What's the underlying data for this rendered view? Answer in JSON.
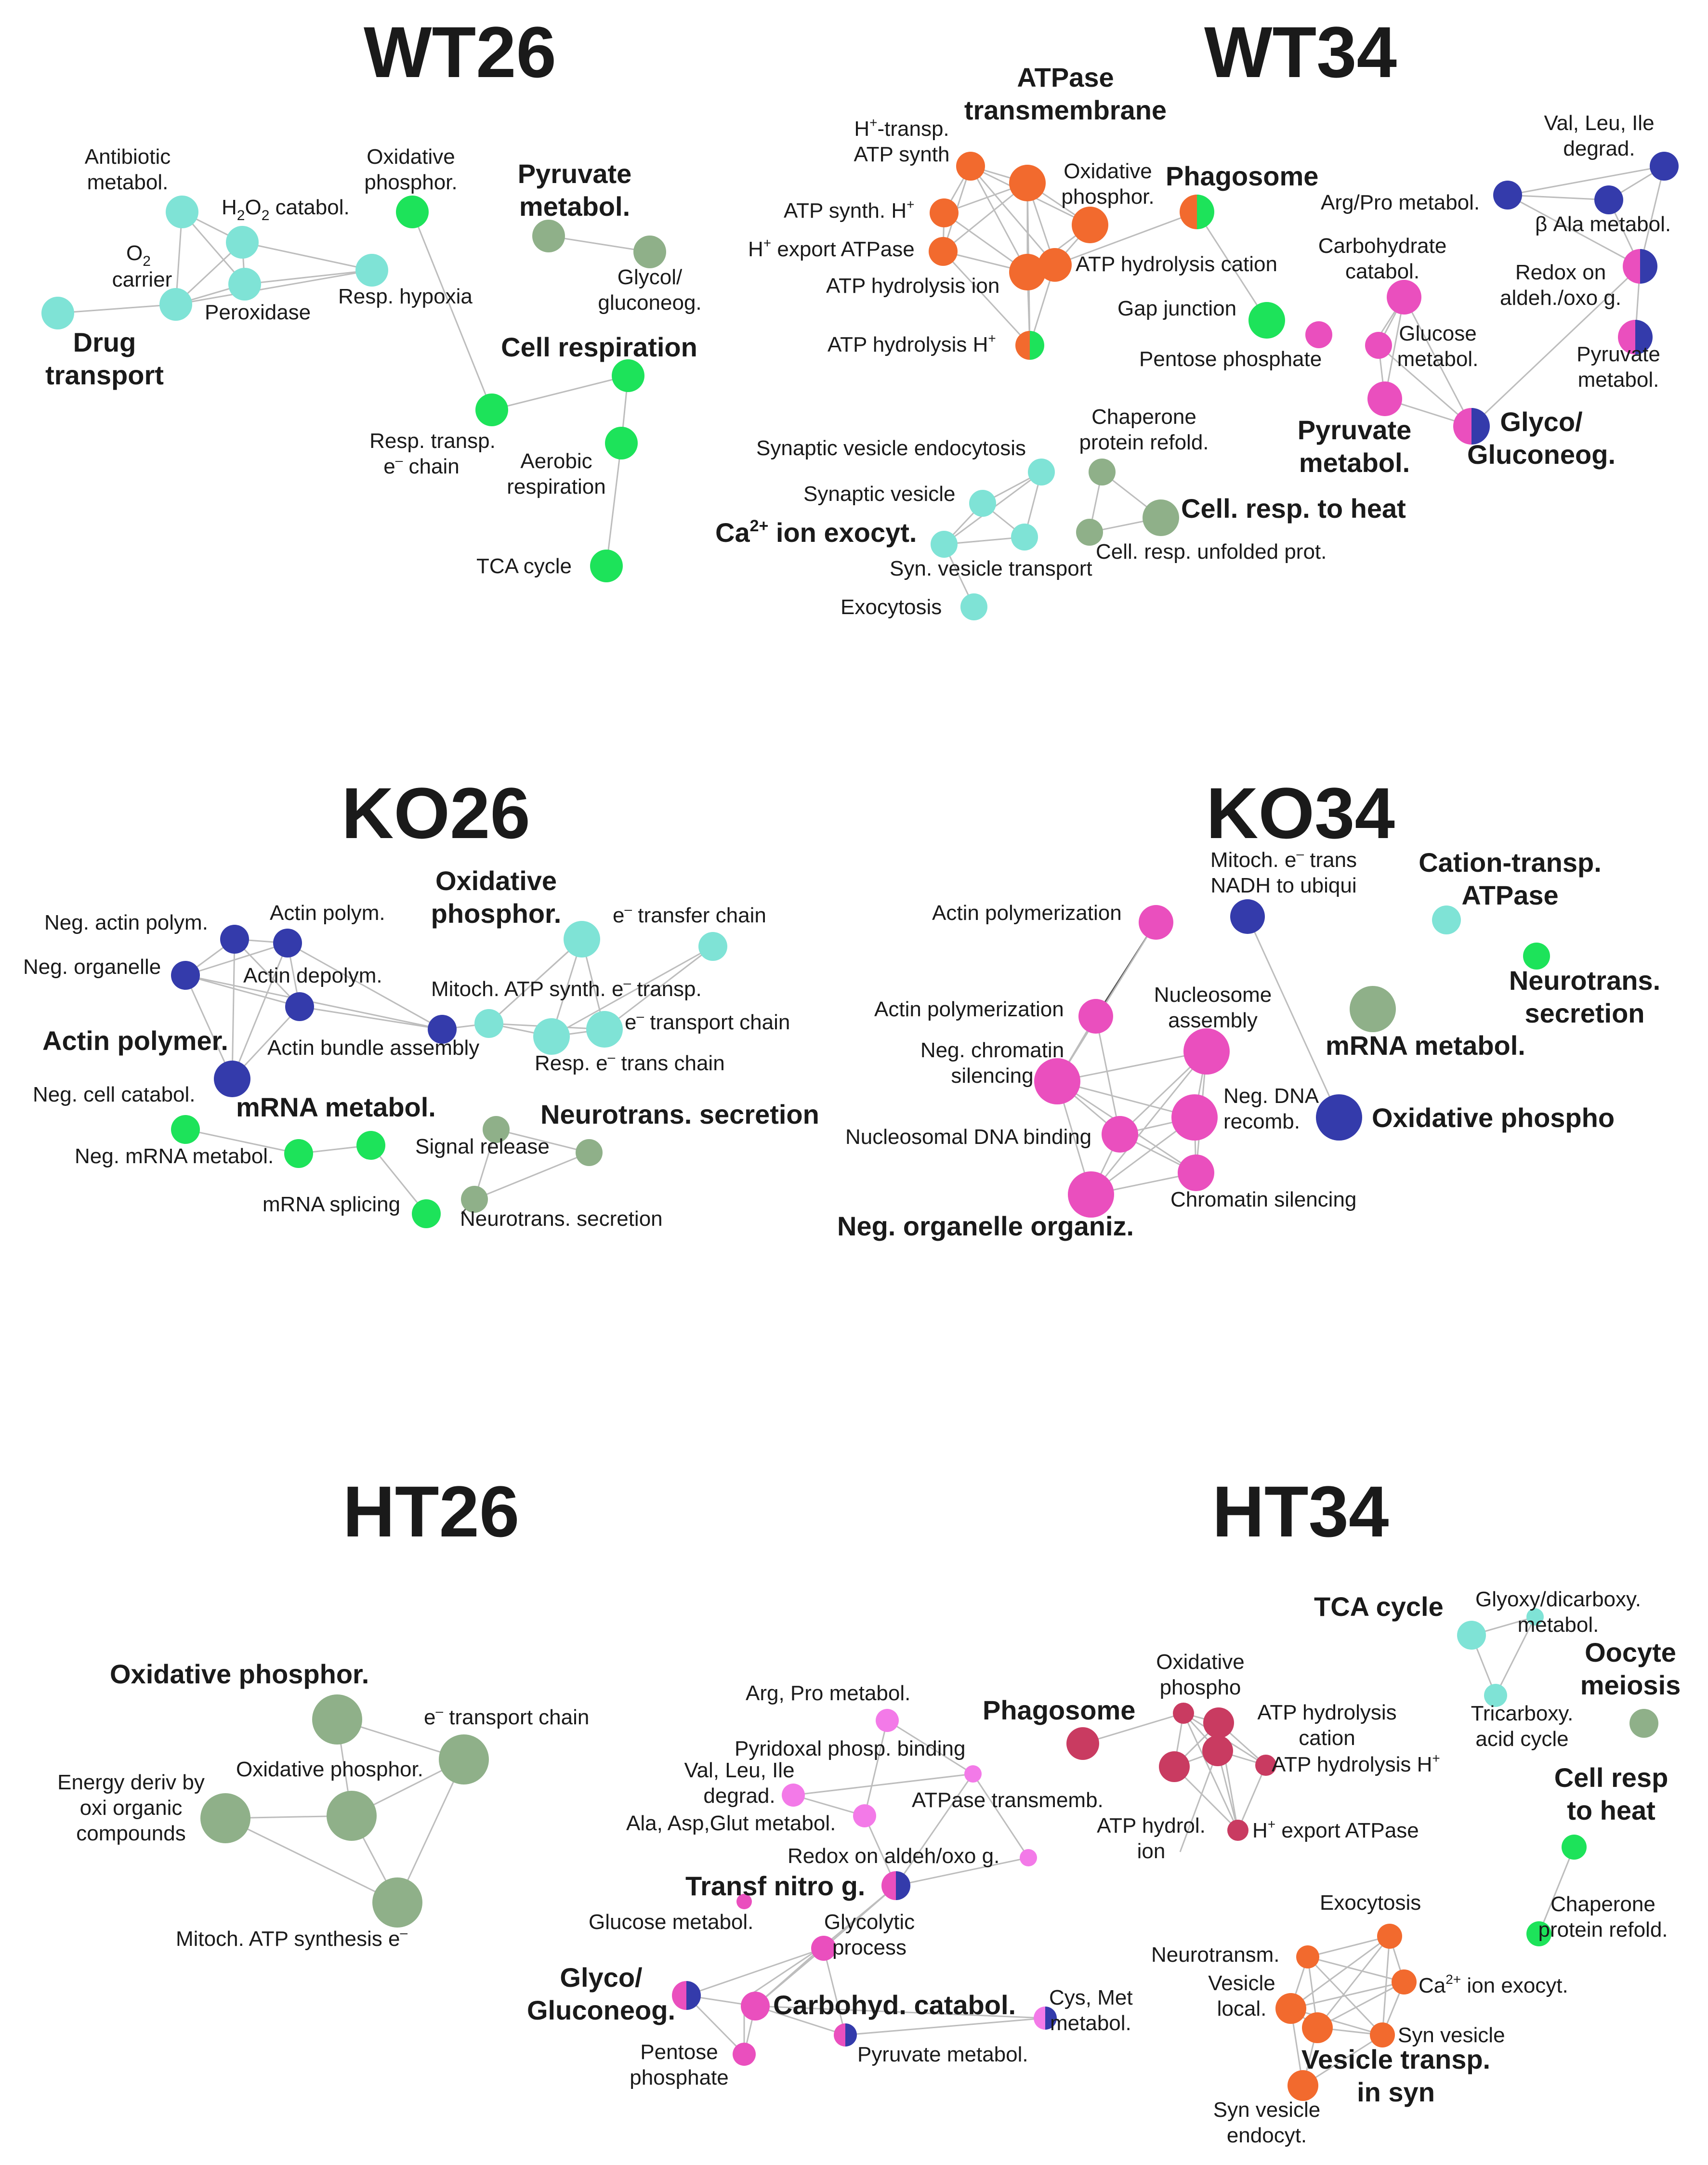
{
  "colors": {
    "cyan": "#7fe3d6",
    "green": "#1de35a",
    "sage": "#8fb089",
    "orange": "#f26a2e",
    "navy": "#343bab",
    "magenta": "#ea4fbe",
    "pink": "#f37ae8",
    "crimson": "#c93b61"
  },
  "panels": [
    {
      "title": "WT26",
      "nodes": [
        {
          "label": "Antibiotic metabol.",
          "color": "cyan",
          "size": 1
        },
        {
          "label": "H2O2 catabol.",
          "color": "cyan",
          "size": 1
        },
        {
          "label": "O2 carrier",
          "color": "cyan",
          "size": 1
        },
        {
          "label": "Peroxidase",
          "color": "cyan",
          "size": 1
        },
        {
          "label": "Resp. hypoxia",
          "color": "cyan",
          "size": 1
        },
        {
          "label": "Drug transport",
          "color": "cyan",
          "size": 1
        },
        {
          "label": "Oxidative phosphor.",
          "color": "green",
          "size": 1
        },
        {
          "label": "Pyruvate metabol.",
          "color": "sage",
          "size": 1
        },
        {
          "label": "Glycol/ gluconeog.",
          "color": "sage",
          "size": 1
        },
        {
          "label": "Cell respiration",
          "color": "green",
          "size": 1
        },
        {
          "label": "Resp. transp. e- chain",
          "color": "green",
          "size": 1
        },
        {
          "label": "Aerobic respiration",
          "color": "green",
          "size": 1
        },
        {
          "label": "TCA cycle",
          "color": "green",
          "size": 1
        }
      ]
    },
    {
      "title": "WT34",
      "nodes": [
        {
          "label": "ATPase transmembrane",
          "color": "orange",
          "size": 2
        },
        {
          "label": "H+-transp. ATP synth",
          "color": "orange",
          "size": 1
        },
        {
          "label": "ATP synth. H+",
          "color": "orange",
          "size": 1
        },
        {
          "label": "H+ export ATPase",
          "color": "orange",
          "size": 1
        },
        {
          "label": "ATP hydrolysis ion",
          "color": "orange",
          "size": 2
        },
        {
          "label": "ATP hydrolysis H+",
          "color": "orange/green",
          "size": 1
        },
        {
          "label": "Oxidative phosphor.",
          "color": "orange",
          "size": 2
        },
        {
          "label": "ATP hydrolysis cation",
          "color": "orange",
          "size": 2
        },
        {
          "label": "Phagosome",
          "color": "orange/green",
          "size": 2
        },
        {
          "label": "Gap junction",
          "color": "green",
          "size": 2
        },
        {
          "label": "Val, Leu, Ile degrad.",
          "color": "navy",
          "size": 1
        },
        {
          "label": "Arg/Pro metabol.",
          "color": "navy",
          "size": 1
        },
        {
          "label": "β Ala metabol.",
          "color": "navy",
          "size": 1
        },
        {
          "label": "Redox on aldeh./oxo g.",
          "color": "magenta/navy",
          "size": 2
        },
        {
          "label": "Carbohydrate catabol.",
          "color": "magenta",
          "size": 2
        },
        {
          "label": "Glucose metabol.",
          "color": "magenta",
          "size": 1
        },
        {
          "label": "Pentose phosphate",
          "color": "magenta",
          "size": 1
        },
        {
          "label": "Pyruvate metabol.",
          "color": "magenta",
          "size": 2
        },
        {
          "label": "Pyruvate metabol.",
          "color": "magenta/navy",
          "size": 2
        },
        {
          "label": "Glyco/ Gluconeog.",
          "color": "magenta/navy",
          "size": 2
        },
        {
          "label": "Synaptic vesicle endocytosis",
          "color": "cyan",
          "size": 1
        },
        {
          "label": "Synaptic vesicle",
          "color": "cyan",
          "size": 1
        },
        {
          "label": "Ca2+ ion exocyt.",
          "color": "cyan",
          "size": 1
        },
        {
          "label": "Syn. vesicle transport",
          "color": "cyan",
          "size": 1
        },
        {
          "label": "Exocytosis",
          "color": "cyan",
          "size": 1
        },
        {
          "label": "Chaperone protein refold.",
          "color": "sage",
          "size": 1
        },
        {
          "label": "Cell. resp. to heat",
          "color": "sage",
          "size": 2
        },
        {
          "label": "Cell. resp. unfolded prot.",
          "color": "sage",
          "size": 1
        }
      ]
    },
    {
      "title": "KO26",
      "nodes": [
        {
          "label": "Neg. actin polym.",
          "color": "navy",
          "size": 1
        },
        {
          "label": "Actin polym.",
          "color": "navy",
          "size": 1
        },
        {
          "label": "Neg. organelle",
          "color": "navy",
          "size": 1
        },
        {
          "label": "Actin depolym.",
          "color": "navy",
          "size": 1
        },
        {
          "label": "Actin bundle assembly",
          "color": "navy",
          "size": 1
        },
        {
          "label": "Actin polymer.",
          "color": "navy",
          "size": 2
        },
        {
          "label": "Oxidative phosphor.",
          "color": "cyan",
          "size": 2
        },
        {
          "label": "e- transfer chain",
          "color": "cyan",
          "size": 1
        },
        {
          "label": "Mitoch. ATP synth. e- transp.",
          "color": "cyan",
          "size": 1
        },
        {
          "label": "e- transport chain",
          "color": "cyan",
          "size": 2
        },
        {
          "label": "Resp. e- trans chain",
          "color": "cyan",
          "size": 2
        },
        {
          "label": "Neg. cell catabol.",
          "color": "green",
          "size": 1
        },
        {
          "label": "mRNA metabol.",
          "color": "green",
          "size": 1
        },
        {
          "label": "Neg. mRNA metabol.",
          "color": "green",
          "size": 1
        },
        {
          "label": "mRNA splicing",
          "color": "green",
          "size": 1
        },
        {
          "label": "Neurotrans. secretion",
          "color": "sage",
          "size": 1
        },
        {
          "label": "Signal release",
          "color": "sage",
          "size": 1
        },
        {
          "label": "Neurotrans. secretion",
          "color": "sage",
          "size": 1
        }
      ]
    },
    {
      "title": "KO34",
      "nodes": [
        {
          "label": "Actin polymerization",
          "color": "magenta",
          "size": 2
        },
        {
          "label": "Actin polymerization",
          "color": "magenta",
          "size": 2
        },
        {
          "label": "Nucleosome assembly",
          "color": "magenta",
          "size": 3
        },
        {
          "label": "Neg. chromatin silencing",
          "color": "magenta",
          "size": 3
        },
        {
          "label": "Neg. DNA recomb.",
          "color": "magenta",
          "size": 3
        },
        {
          "label": "Nucleosomal DNA binding",
          "color": "magenta",
          "size": 2
        },
        {
          "label": "Chromatin silencing",
          "color": "magenta",
          "size": 2
        },
        {
          "label": "Neg. organelle organiz.",
          "color": "magenta",
          "size": 3
        },
        {
          "label": "Mitoch. e- trans NADH to ubiqui",
          "color": "navy",
          "size": 2
        },
        {
          "label": "Oxidative phospho",
          "color": "navy",
          "size": 3
        },
        {
          "label": "mRNA metabol.",
          "color": "sage",
          "size": 3
        },
        {
          "label": "Cation-transp. ATPase",
          "color": "cyan",
          "size": 1
        },
        {
          "label": "Neurotrans. secretion",
          "color": "green",
          "size": 1
        }
      ]
    },
    {
      "title": "HT26",
      "nodes": [
        {
          "label": "Oxidative phosphor.",
          "color": "sage",
          "size": 3
        },
        {
          "label": "e- transport chain",
          "color": "sage",
          "size": 3
        },
        {
          "label": "Oxidative phosphor.",
          "color": "sage",
          "size": 3
        },
        {
          "label": "Energy deriv by oxi organic compounds",
          "color": "sage",
          "size": 3
        },
        {
          "label": "Mitoch. ATP synthesis e-",
          "color": "sage",
          "size": 3
        }
      ]
    },
    {
      "title": "HT34",
      "nodes": [
        {
          "label": "Arg, Pro metabol.",
          "color": "pink",
          "size": 1
        },
        {
          "label": "Pyridoxal phosp. binding",
          "color": "pink",
          "size": 1
        },
        {
          "label": "Val, Leu, Ile degrad.",
          "color": "pink",
          "size": 1
        },
        {
          "label": "Ala, Asp,Glut metabol.",
          "color": "pink",
          "size": 1
        },
        {
          "label": "ATPase transmemb.",
          "color": "pink",
          "size": 1
        },
        {
          "label": "Redox on aldeh/oxo g.",
          "color": "pink",
          "size": 1
        },
        {
          "label": "Transf nitro g.",
          "color": "magenta/navy",
          "size": 1
        },
        {
          "label": "Glucose metabol.",
          "color": "magenta",
          "size": 1
        },
        {
          "label": "Glycolytic process",
          "color": "magenta",
          "size": 1
        },
        {
          "label": "Glyco/ Gluconeog.",
          "color": "magenta/navy",
          "size": 1
        },
        {
          "label": "Carbohyd. catabol.",
          "color": "magenta",
          "size": 2
        },
        {
          "label": "Cys, Met metabol.",
          "color": "magenta/navy",
          "size": 1
        },
        {
          "label": "Pentose phosphate",
          "color": "magenta",
          "size": 1
        },
        {
          "label": "Pyruvate metabol.",
          "color": "magenta/navy",
          "size": 1
        },
        {
          "label": "Phagosome",
          "color": "crimson",
          "size": 2
        },
        {
          "label": "Oxidative phospho",
          "color": "crimson",
          "size": 1
        },
        {
          "label": "ATP hydrolysis cation",
          "color": "crimson",
          "size": 2
        },
        {
          "label": "ATP hydrolysis H+",
          "color": "crimson",
          "size": 1
        },
        {
          "label": "ATP hydrol. ion",
          "color": "crimson",
          "size": 2
        },
        {
          "label": "H+ export ATPase",
          "color": "crimson",
          "size": 1
        },
        {
          "label": "TCA cycle",
          "color": "cyan",
          "size": 2
        },
        {
          "label": "Glyoxy/dicarboxy. metabol.",
          "color": "cyan",
          "size": 1
        },
        {
          "label": "Tricarboxy. acid cycle",
          "color": "cyan",
          "size": 1
        },
        {
          "label": "Oocyte meiosis",
          "color": "sage",
          "size": 2
        },
        {
          "label": "Cell resp to heat",
          "color": "green",
          "size": 1
        },
        {
          "label": "Chaperone protein refold.",
          "color": "green",
          "size": 1
        },
        {
          "label": "Exocytosis",
          "color": "orange",
          "size": 1
        },
        {
          "label": "Neurotransm.",
          "color": "orange",
          "size": 1
        },
        {
          "label": "Ca2+ ion exocyt.",
          "color": "orange",
          "size": 1
        },
        {
          "label": "Vesicle local.",
          "color": "orange",
          "size": 2
        },
        {
          "label": "Syn vesicle",
          "color": "orange",
          "size": 1
        },
        {
          "label": "Vesicle transp. in syn",
          "color": "orange",
          "size": 2
        },
        {
          "label": "Syn vesicle endocyt.",
          "color": "orange",
          "size": 2
        }
      ]
    }
  ],
  "labels": {
    "wt26": {
      "title": "WT26",
      "antibiotic_1": "Antibiotic",
      "antibiotic_2": "metabol.",
      "h2o2_a": "H",
      "h2o2_b": "2",
      "h2o2_c": "O",
      "h2o2_d": "2",
      "h2o2_e": " catabol.",
      "o2_a": "O",
      "o2_b": "2",
      "carrier": "carrier",
      "peroxidase": "Peroxidase",
      "hypoxia": "Resp. hypoxia",
      "drug_1": "Drug",
      "drug_2": "transport",
      "oxphos_1": "Oxidative",
      "oxphos_2": "phosphor.",
      "pyr_1": "Pyruvate",
      "pyr_2": "metabol.",
      "glyc_1": "Glycol/",
      "glyc_2": "gluconeog.",
      "cellresp": "Cell respiration",
      "resptransp_1": "Resp. transp.",
      "resptransp_2": "e",
      "resptransp_sup": "–",
      "resptransp_3": "  chain",
      "aerobic_1": "Aerobic",
      "aerobic_2": "respiration",
      "tca": "TCA cycle"
    },
    "wt34": {
      "title": "WT34",
      "atpase_1": "ATPase",
      "atpase_2": "transmembrane",
      "htransp_1a": "H",
      "htransp_1sup": "+",
      "htransp_1b": "-transp.",
      "htransp_2": "ATP synth",
      "atpsynth_a": "ATP synth. H",
      "atpsynth_sup": "+",
      "hexport_a": "H",
      "hexport_sup": "+",
      "hexport_b": " export ATPase",
      "hydion": "ATP hydrolysis ion",
      "hydh_a": "ATP hydrolysis H",
      "hydh_sup": "+",
      "oxphos_1": "Oxidative",
      "oxphos_2": "phosphor.",
      "hydcation": "ATP hydrolysis cation",
      "phagosome": "Phagosome",
      "gap": "Gap junction",
      "val_1": "Val, Leu, Ile",
      "val_2": "degrad.",
      "argpro": "Arg/Pro metabol.",
      "bala": "β Ala metabol.",
      "redox_1": "Redox on",
      "redox_2": "aldeh./oxo g.",
      "carb_1": "Carbohydrate",
      "carb_2": "catabol.",
      "glucose_1": "Glucose",
      "glucose_2": "metabol.",
      "pentose": "Pentose phosphate",
      "pyrbold_1": "Pyruvate",
      "pyrbold_2": "metabol.",
      "pyr_1": "Pyruvate",
      "pyr_2": "metabol.",
      "glyco_1": "Glyco/",
      "glyco_2": "Gluconeog.",
      "synendo": "Synaptic vesicle endocytosis",
      "synves": "Synaptic vesicle",
      "ca_a": "Ca",
      "ca_sup": "2+",
      "ca_b": " ion exocyt.",
      "syntrans": "Syn. vesicle transport",
      "exocytosis": "Exocytosis",
      "chap_1": "Chaperone",
      "chap_2": "protein refold.",
      "heat": "Cell. resp. to heat",
      "unfolded": "Cell. resp. unfolded prot."
    },
    "ko26": {
      "title": "KO26",
      "negactin": "Neg. actin polym.",
      "actinpolym": "Actin polym.",
      "negorg": "Neg. organelle",
      "depolym": "Actin depolym.",
      "bundle": "Actin bundle assembly",
      "actinpolymer": "Actin polymer.",
      "oxphos_1": "Oxidative",
      "oxphos_2": "phosphor.",
      "etransfer_a": "e",
      "etransfer_sup": "–",
      "etransfer_b": " transfer chain",
      "mitoch_a": "Mitoch. ATP synth. e",
      "mitoch_sup": "–",
      "mitoch_b": " transp.",
      "etransport_a": "e",
      "etransport_sup": "–",
      "etransport_b": " transport chain",
      "resp_a": "Resp. e",
      "resp_sup": "–",
      "resp_b": " trans chain",
      "negcell": "Neg. cell catabol.",
      "mrna": "mRNA metabol.",
      "negmrna": "Neg. mRNA metabol.",
      "splicing": "mRNA splicing",
      "neuro_bold": "Neurotrans. secretion",
      "signal": "Signal release",
      "neuro": "Neurotrans. secretion"
    },
    "ko34": {
      "title": "KO34",
      "actin_1": "Actin polymerization",
      "actin_2": "Actin polymerization",
      "nucl_1": "Nucleosome",
      "nucl_2": "assembly",
      "negchrom_1": "Neg. chromatin",
      "negchrom_2": "silencing",
      "negdna_1": "Neg. DNA",
      "negdna_2": "recomb.",
      "nucdna": "Nucleosomal DNA binding",
      "chromsil": "Chromatin silencing",
      "negorg": "Neg. organelle organiz.",
      "mitoch_1a": "Mitoch. e",
      "mitoch_1sup": "–",
      "mitoch_1b": " trans",
      "mitoch_2": "NADH to ubiqui",
      "oxphos": "Oxidative phospho",
      "mrna": "mRNA metabol.",
      "cation_1": "Cation-transp.",
      "cation_2": "ATPase",
      "neuro_1": "Neurotrans.",
      "neuro_2": "secretion"
    },
    "ht26": {
      "title": "HT26",
      "oxphos_bold": "Oxidative phosphor.",
      "etransport_a": "e",
      "etransport_sup": "–",
      "etransport_b": " transport chain",
      "oxphos": "Oxidative phosphor.",
      "energy_1": "Energy deriv by",
      "energy_2": "oxi organic",
      "energy_3": "compounds",
      "mitoch_a": "Mitoch. ATP synthesis e",
      "mitoch_sup": "–"
    },
    "ht34": {
      "title": "HT34",
      "argpro": "Arg, Pro metabol.",
      "pyridoxal": "Pyridoxal phosp. binding",
      "val_1": "Val, Leu, Ile",
      "val_2": "degrad.",
      "ala": "Ala, Asp,Glut metabol.",
      "atpase": "ATPase transmemb.",
      "redox": "Redox on aldeh/oxo g.",
      "transf": "Transf nitro g.",
      "glucose": "Glucose metabol.",
      "glycolytic_1": "Glycolytic",
      "glycolytic_2": "process",
      "glyco_1": "Glyco/",
      "glyco_2": "Gluconeog.",
      "carb": "Carbohyd. catabol.",
      "cys_1": "Cys, Met",
      "cys_2": "metabol.",
      "pentose_1": "Pentose",
      "pentose_2": "phosphate",
      "pyr": "Pyruvate metabol.",
      "phagosome": "Phagosome",
      "oxphos_1": "Oxidative",
      "oxphos_2": "phospho",
      "hydcation_1": "ATP hydrolysis",
      "hydcation_2": "cation",
      "hydh_a": "ATP hydrolysis H",
      "hydh_sup": "+",
      "hydion_1": "ATP hydrol.",
      "hydion_2": "ion",
      "hexport_a": "H",
      "hexport_sup": "+",
      "hexport_b": " export ATPase",
      "tca": "TCA cycle",
      "glyoxy_1": "Glyoxy/dicarboxy.",
      "glyoxy_2": "metabol.",
      "tricarb_1": "Tricarboxy.",
      "tricarb_2": "acid cycle",
      "oocyte_1": "Oocyte",
      "oocyte_2": "meiosis",
      "heat_1": "Cell resp",
      "heat_2": "to heat",
      "chap_1": "Chaperone",
      "chap_2": "protein refold.",
      "exocytosis": "Exocytosis",
      "neurotransm": "Neurotransm.",
      "ca_a": "Ca",
      "ca_sup": "2+",
      "ca_b": " ion exocyt.",
      "vesloc_1": "Vesicle",
      "vesloc_2": "local.",
      "synves": "Syn vesicle",
      "vestransp_1": "Vesicle transp.",
      "vestransp_2": "in syn",
      "synendo_1": "Syn vesicle",
      "synendo_2": "endocyt."
    }
  }
}
